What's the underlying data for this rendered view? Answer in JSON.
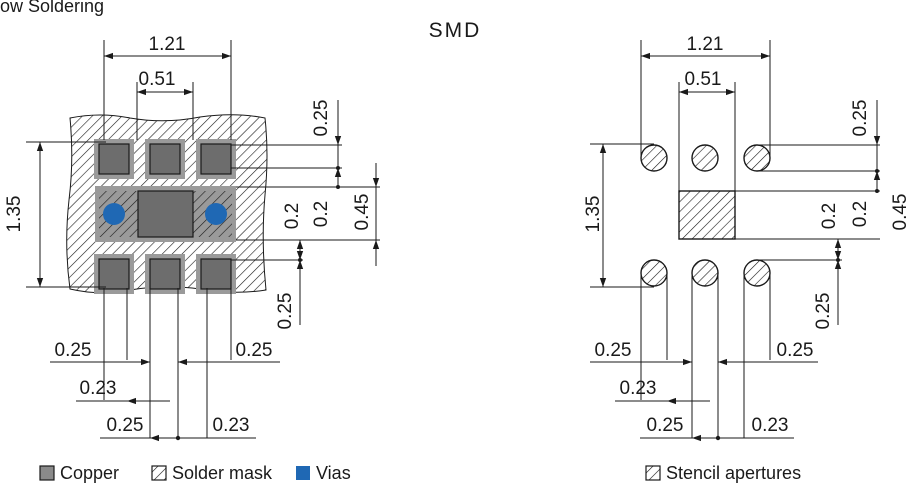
{
  "header": {
    "cut_title": "ow Soldering",
    "title": "SMD"
  },
  "left_drawing": {
    "dims": {
      "width_total": "1.21",
      "pitch": "0.51",
      "height_total": "1.35",
      "top_pad": "0.25",
      "gap_a": "0.2",
      "gap_b": "0.2",
      "center_pad": "0.45",
      "bottom_pad": "0.25",
      "left_a": "0.25",
      "right_a": "0.25",
      "left_b": "0.23",
      "bottom_c": "0.25",
      "bottom_d": "0.23"
    }
  },
  "right_drawing": {
    "dims": {
      "width_total": "1.21",
      "pitch": "0.51",
      "height_total": "1.35",
      "top_pad": "0.25",
      "gap_a": "0.2",
      "gap_b": "0.2",
      "center_pad": "0.45",
      "bottom_pad": "0.25",
      "left_a": "0.25",
      "right_a": "0.25",
      "left_b": "0.23",
      "bottom_c": "0.25",
      "bottom_d": "0.23"
    }
  },
  "legend": {
    "copper": "Copper",
    "solder_mask": "Solder mask",
    "vias": "Vias",
    "stencil": "Stencil apertures"
  },
  "colors": {
    "copper": "#8a8a8a",
    "via": "#1f68b4",
    "pad_dark": "#6d6d6d"
  }
}
